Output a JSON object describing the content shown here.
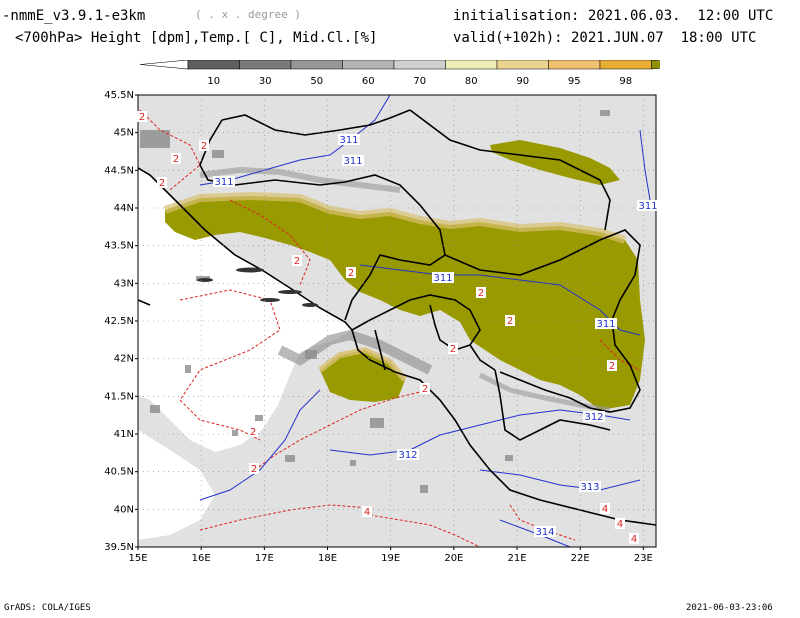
{
  "header": {
    "model": "-nmmE_v3.9.1-e3km",
    "unit_hint": "( . x . degree )",
    "init_label": "initialisation: 2021.06.03.  12:00 UTC",
    "field_label": "<700hPa> Height [dpm],Temp.[ C], Mid.Cl.[%]",
    "valid_label": "valid(+102h): 2021.JUN.07  18:00 UTC"
  },
  "colorbar": {
    "ticks": [
      "10",
      "30",
      "50",
      "60",
      "70",
      "80",
      "90",
      "95",
      "98"
    ],
    "colors": [
      "#5f5f5f",
      "#7a7a7a",
      "#969696",
      "#b4b4b4",
      "#cfcfcf",
      "#f0eeb8",
      "#e9d38f",
      "#efc070",
      "#e8ad35",
      "#8f8f00"
    ]
  },
  "map": {
    "lat_labels": [
      "45.5N",
      "45N",
      "44.5N",
      "44N",
      "43.5N",
      "43N",
      "42.5N",
      "42N",
      "41.5N",
      "41N",
      "40.5N",
      "40N",
      "39.5N"
    ],
    "lon_labels": [
      "15E",
      "16E",
      "17E",
      "18E",
      "19E",
      "20E",
      "21E",
      "22E",
      "23E"
    ],
    "height_contours": [
      {
        "label": "311"
      },
      {
        "label": "311"
      },
      {
        "label": "311"
      },
      {
        "label": "311"
      },
      {
        "label": "311"
      },
      {
        "label": "311"
      },
      {
        "label": "312"
      },
      {
        "label": "312"
      },
      {
        "label": "313"
      },
      {
        "label": "314"
      }
    ],
    "temp_labels": [
      "2",
      "2",
      "2",
      "2",
      "2",
      "2",
      "2",
      "2",
      "2",
      "2",
      "2",
      "2",
      "2",
      "4",
      "4",
      "4",
      "4"
    ]
  },
  "footer": {
    "left": "GrADS: COLA/IGES",
    "right": "2021-06-03-23:06"
  },
  "colors": {
    "land": "#e1e1e1",
    "cloud_dense": "#999900",
    "height_contour": "#2233cc",
    "temp_contour": "#dd2222",
    "borders": "#000000"
  }
}
